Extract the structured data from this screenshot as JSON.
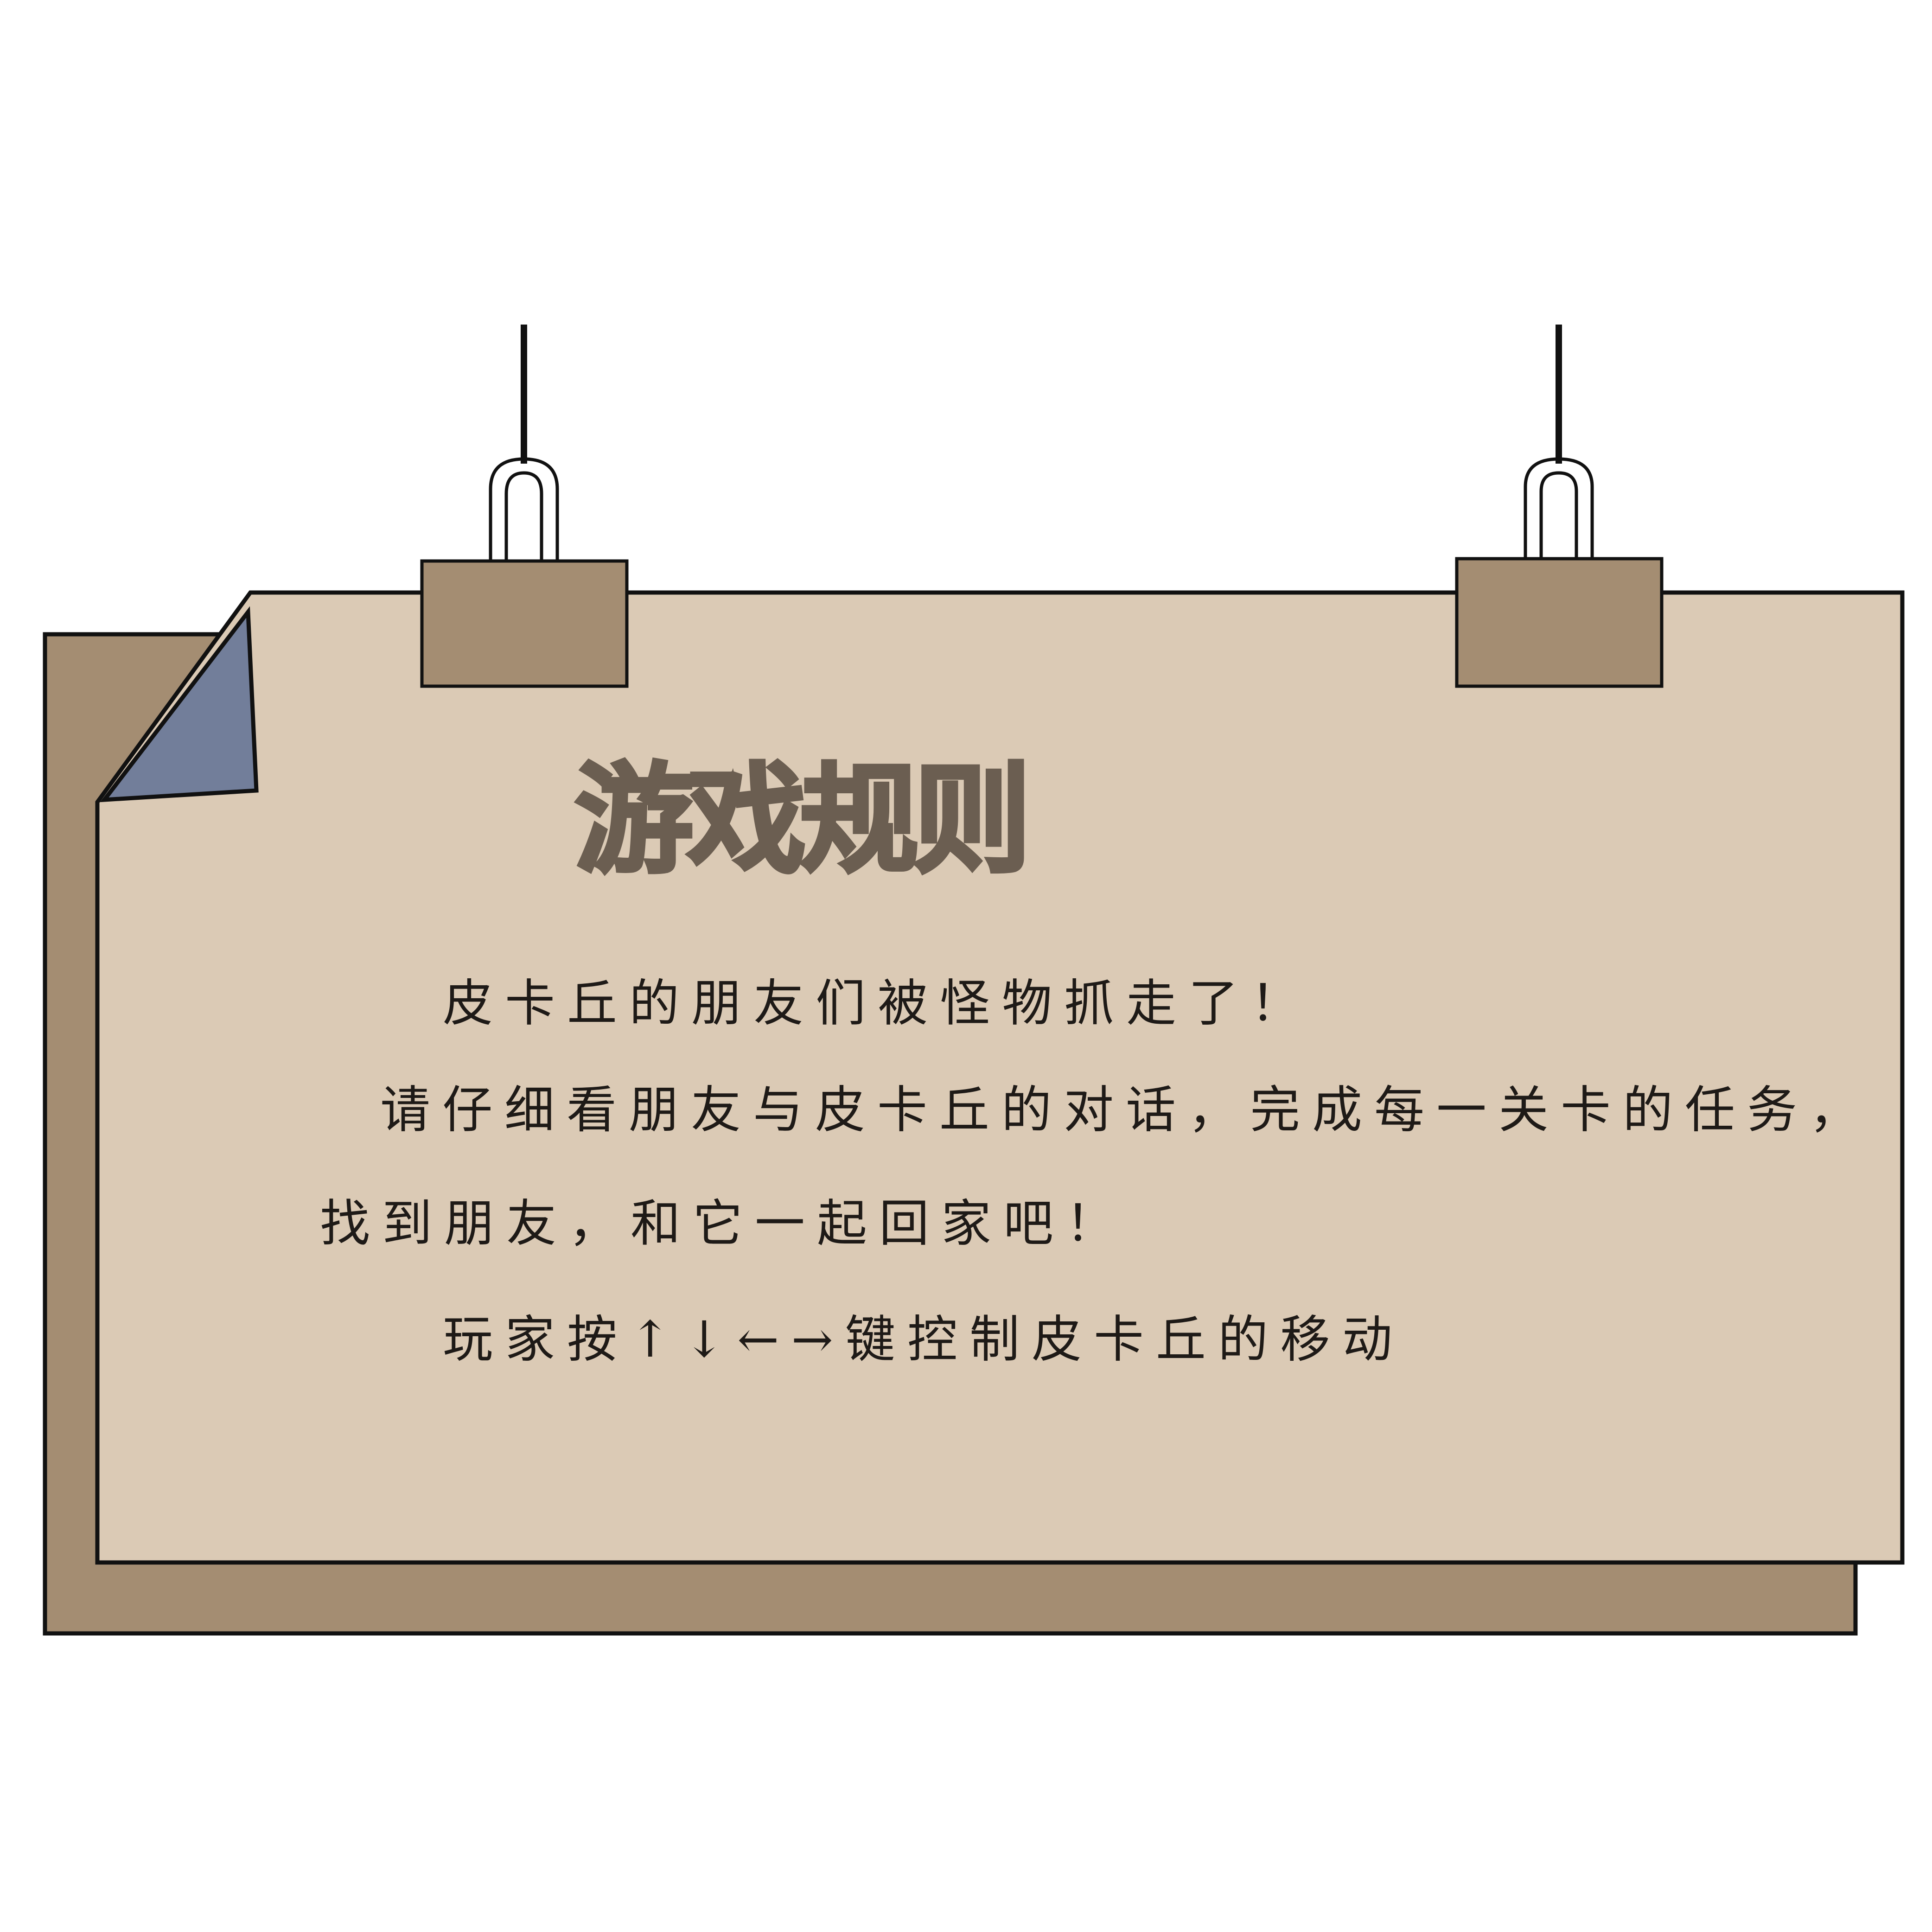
{
  "panel": {
    "title": "游戏规则",
    "rules": [
      "皮卡丘的朋友们被怪物抓走了！",
      "请仔细看朋友与皮卡丘的对话，完成每一关卡的任务，",
      "找到朋友，和它一起回家吧！",
      "玩家按↑↓←→键控制皮卡丘的移动"
    ]
  },
  "colors": {
    "back_sheet": "#a48d72",
    "front_sheet": "#dbcab5",
    "folded_corner": "#727e9a",
    "clip": "#a48d72",
    "title_text": "#6b5e51",
    "body_text": "#1e1a17",
    "outline": "#111111"
  }
}
